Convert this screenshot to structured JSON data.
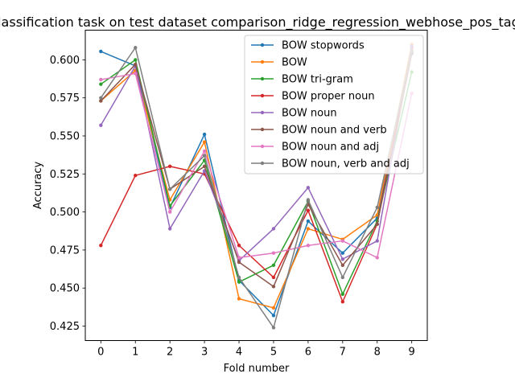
{
  "chart_data": {
    "type": "line",
    "title": "Classification task on test dataset comparison_ridge_regression_webhose_pos_tags",
    "xlabel": "Fold number",
    "ylabel": "Accuracy",
    "x": [
      0,
      1,
      2,
      3,
      4,
      5,
      6,
      7,
      8,
      9
    ],
    "xlim": [
      -0.45,
      9.45
    ],
    "ylim": [
      0.4155,
      0.6195
    ],
    "yticks": [
      0.425,
      0.45,
      0.475,
      0.5,
      0.525,
      0.55,
      0.575,
      0.6
    ],
    "ytick_labels": [
      "0.425",
      "0.450",
      "0.475",
      "0.500",
      "0.525",
      "0.550",
      "0.575",
      "0.600"
    ],
    "xtick_labels": [
      "0",
      "1",
      "2",
      "3",
      "4",
      "5",
      "6",
      "7",
      "8",
      "9"
    ],
    "legend_position": "top-right",
    "grid": false,
    "series": [
      {
        "name": "BOW stopwords",
        "color": "#1f77b4",
        "values": [
          0.6055,
          0.596,
          0.503,
          0.551,
          0.455,
          0.432,
          0.494,
          0.473,
          0.496,
          0.605
        ]
      },
      {
        "name": "BOW",
        "color": "#ff7f0e",
        "values": [
          0.573,
          0.593,
          0.508,
          0.546,
          0.443,
          0.437,
          0.489,
          0.482,
          0.498,
          0.61
        ]
      },
      {
        "name": "BOW tri-gram",
        "color": "#2ca02c",
        "values": [
          0.584,
          0.6,
          0.504,
          0.534,
          0.454,
          0.465,
          0.507,
          0.446,
          0.494,
          0.592
        ]
      },
      {
        "name": "BOW proper noun",
        "color": "#d62728",
        "values": [
          0.478,
          0.524,
          0.53,
          0.525,
          0.478,
          0.457,
          0.501,
          0.441,
          0.492,
          0.608
        ]
      },
      {
        "name": "BOW noun",
        "color": "#9467bd",
        "values": [
          0.557,
          0.596,
          0.489,
          0.527,
          0.468,
          0.489,
          0.516,
          0.469,
          0.481,
          0.609
        ]
      },
      {
        "name": "BOW noun and verb",
        "color": "#8c564b",
        "values": [
          0.573,
          0.597,
          0.515,
          0.53,
          0.467,
          0.451,
          0.505,
          0.465,
          0.492,
          0.604
        ]
      },
      {
        "name": "BOW noun and adj",
        "color": "#e377c2",
        "values": [
          0.587,
          0.591,
          0.5,
          0.54,
          0.47,
          0.473,
          0.478,
          0.481,
          0.47,
          0.578
        ]
      },
      {
        "name": "BOW noun, verb and adj",
        "color": "#7f7f7f",
        "values": [
          0.575,
          0.608,
          0.515,
          0.537,
          0.457,
          0.424,
          0.508,
          0.457,
          0.503,
          0.606
        ]
      }
    ]
  }
}
